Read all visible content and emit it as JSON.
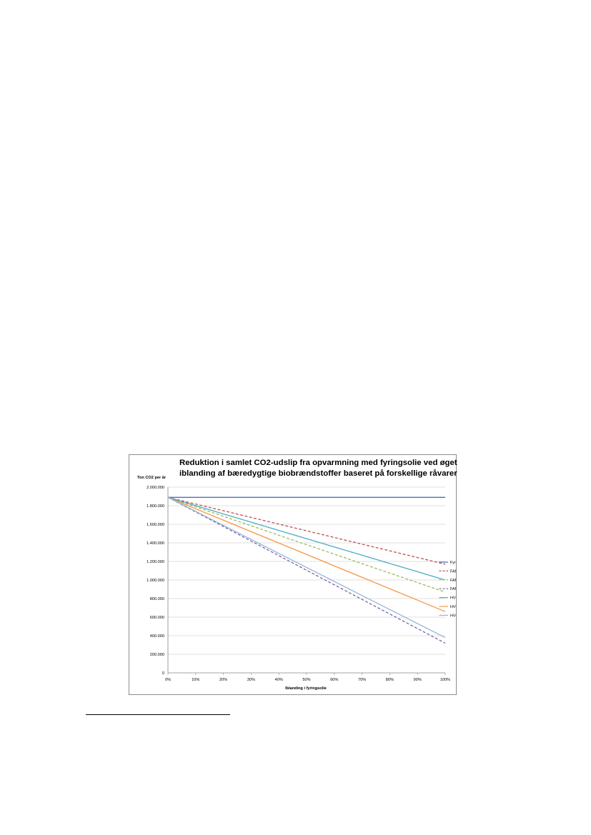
{
  "chart_data": {
    "type": "line",
    "title_lines": [
      "Reduktion i samlet CO2-udslip fra opvarmning med fyringsolie ved øget",
      "iblanding af bæredygtige biobrændstoffer baseret på forskellige råvarer"
    ],
    "xlabel": "Iblanding i fyringsolie",
    "ylabel": "Ton CO2 per år",
    "x": [
      0,
      10,
      20,
      30,
      40,
      50,
      60,
      70,
      80,
      90,
      100
    ],
    "x_tick_labels": [
      "0%",
      "10%",
      "20%",
      "30%",
      "40%",
      "50%",
      "60%",
      "70%",
      "80%",
      "90%",
      "100%"
    ],
    "ylim": [
      0,
      2000000
    ],
    "y_tick_values": [
      0,
      200000,
      400000,
      600000,
      800000,
      1000000,
      1200000,
      1400000,
      1600000,
      1800000,
      2000000
    ],
    "y_tick_labels": [
      "0",
      "200.000",
      "400.000",
      "600.000",
      "800.000",
      "1.000.000",
      "1.200.000",
      "1.400.000",
      "1.600.000",
      "1.800.000",
      "2.000.000"
    ],
    "grid": true,
    "legend_position": "right",
    "series": [
      {
        "name": "Fyringsolie",
        "start": 1890000,
        "end": 1890000,
        "color": "#4472c4",
        "dashed": false
      },
      {
        "name": "FAME - Raps",
        "start": 1890000,
        "end": 1170000,
        "color": "#c0504d",
        "dashed": true
      },
      {
        "name": "FAME - Palme",
        "start": 1890000,
        "end": 870000,
        "color": "#9bbb59",
        "dashed": true
      },
      {
        "name": "FAME - Affald",
        "start": 1890000,
        "end": 320000,
        "color": "#8064a2",
        "dashed": true
      },
      {
        "name": "HVO - Raps",
        "start": 1890000,
        "end": 1000000,
        "color": "#4bacc6",
        "dashed": false
      },
      {
        "name": "HVO - Palme",
        "start": 1890000,
        "end": 660000,
        "color": "#f79646",
        "dashed": false
      },
      {
        "name": "HVO - Affald",
        "start": 1890000,
        "end": 380000,
        "color": "#95b3d7",
        "dashed": false
      }
    ]
  }
}
